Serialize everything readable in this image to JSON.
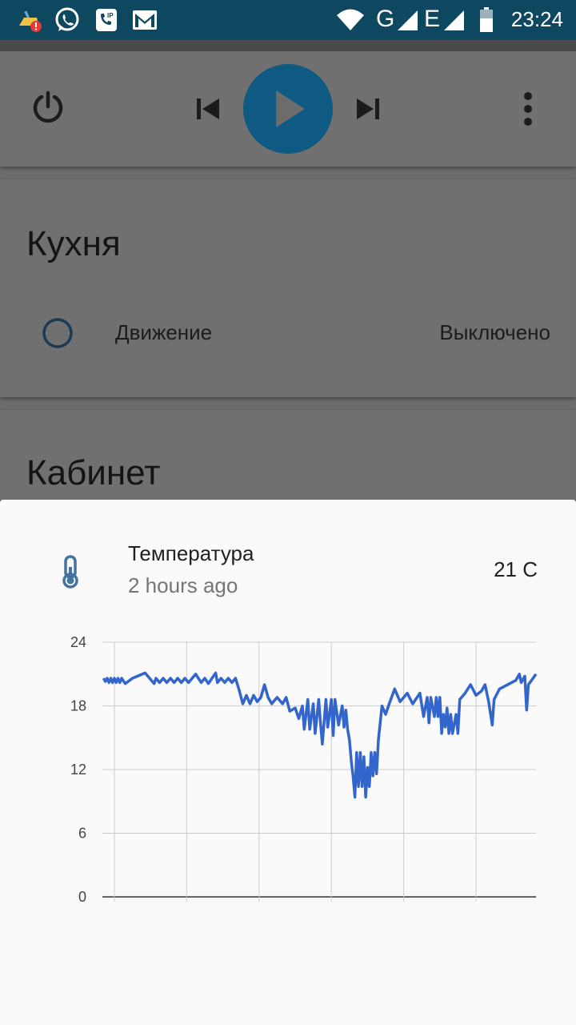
{
  "status_bar": {
    "time": "23:24",
    "network_g": "G",
    "network_e": "E",
    "icons": [
      "cleaner-alert-icon",
      "whatsapp-icon",
      "sip-phone-icon",
      "gmail-icon",
      "wifi-icon",
      "signal-icon",
      "battery-icon"
    ]
  },
  "media": {
    "icons": [
      "power-icon",
      "skip-previous-icon",
      "play-icon",
      "skip-next-icon",
      "more-vert-icon"
    ],
    "accent": "#0f5a82"
  },
  "kitchen": {
    "title": "Кухня",
    "sensor_label": "Движение",
    "sensor_state": "Выключено"
  },
  "office": {
    "title": "Кабинет"
  },
  "dialog": {
    "entity_name": "Температура",
    "last_changed": "2 hours ago",
    "state": "21 C",
    "icon": "thermometer-icon"
  },
  "chart_data": {
    "type": "line",
    "title": "",
    "xlabel": "",
    "ylabel": "",
    "ylim": [
      0,
      24
    ],
    "yticks": [
      "0",
      "6",
      "12",
      "18",
      "24"
    ],
    "xticks": [
      "0:00",
      "4:00",
      "8:00",
      "12:00",
      "16:00",
      "20:00"
    ],
    "xlim_hours": [
      -0.6,
      23.4
    ],
    "line_color": "#3366cc",
    "grid": true,
    "series": [
      {
        "name": "",
        "points": [
          [
            -0.6,
            20.6
          ],
          [
            -0.5,
            20.3
          ],
          [
            -0.4,
            20.6
          ],
          [
            -0.3,
            20.2
          ],
          [
            -0.2,
            20.6
          ],
          [
            -0.1,
            20.2
          ],
          [
            0.0,
            20.6
          ],
          [
            0.1,
            20.2
          ],
          [
            0.2,
            20.6
          ],
          [
            0.3,
            20.2
          ],
          [
            0.4,
            20.6
          ],
          [
            0.6,
            20.1
          ],
          [
            1.0,
            20.6
          ],
          [
            1.7,
            21.1
          ],
          [
            2.2,
            20.1
          ],
          [
            2.3,
            20.6
          ],
          [
            2.5,
            20.2
          ],
          [
            2.7,
            20.6
          ],
          [
            2.9,
            20.2
          ],
          [
            3.1,
            20.6
          ],
          [
            3.3,
            20.2
          ],
          [
            3.5,
            20.6
          ],
          [
            3.7,
            20.2
          ],
          [
            3.9,
            20.6
          ],
          [
            4.1,
            20.2
          ],
          [
            4.3,
            20.6
          ],
          [
            4.5,
            21.0
          ],
          [
            4.8,
            20.2
          ],
          [
            5.0,
            20.6
          ],
          [
            5.2,
            20.1
          ],
          [
            5.4,
            20.6
          ],
          [
            5.6,
            21.1
          ],
          [
            5.7,
            20.2
          ],
          [
            5.9,
            20.6
          ],
          [
            6.1,
            20.2
          ],
          [
            6.3,
            20.6
          ],
          [
            6.5,
            20.2
          ],
          [
            6.7,
            20.6
          ],
          [
            6.9,
            19.5
          ],
          [
            7.1,
            18.2
          ],
          [
            7.3,
            19.0
          ],
          [
            7.5,
            18.2
          ],
          [
            7.7,
            19.0
          ],
          [
            7.9,
            18.4
          ],
          [
            8.1,
            18.8
          ],
          [
            8.3,
            20.0
          ],
          [
            8.5,
            18.8
          ],
          [
            8.7,
            18.2
          ],
          [
            9.0,
            18.8
          ],
          [
            9.3,
            18.2
          ],
          [
            9.5,
            18.8
          ],
          [
            9.7,
            17.5
          ],
          [
            10.0,
            17.8
          ],
          [
            10.2,
            16.8
          ],
          [
            10.4,
            18.0
          ],
          [
            10.5,
            15.8
          ],
          [
            10.7,
            18.6
          ],
          [
            10.8,
            15.8
          ],
          [
            11.0,
            18.2
          ],
          [
            11.1,
            15.4
          ],
          [
            11.3,
            18.6
          ],
          [
            11.4,
            16.4
          ],
          [
            11.5,
            14.4
          ],
          [
            11.7,
            18.6
          ],
          [
            11.8,
            16.0
          ],
          [
            12.0,
            18.6
          ],
          [
            12.1,
            15.2
          ],
          [
            12.2,
            18.6
          ],
          [
            12.4,
            16.2
          ],
          [
            12.6,
            18.0
          ],
          [
            12.7,
            16.0
          ],
          [
            12.8,
            17.6
          ],
          [
            12.9,
            15.8
          ],
          [
            13.0,
            14.8
          ],
          [
            13.1,
            12.8
          ],
          [
            13.2,
            11.4
          ],
          [
            13.3,
            9.4
          ],
          [
            13.4,
            13.6
          ],
          [
            13.5,
            10.4
          ],
          [
            13.6,
            13.6
          ],
          [
            13.7,
            10.4
          ],
          [
            13.8,
            13.2
          ],
          [
            13.9,
            9.4
          ],
          [
            14.0,
            12.2
          ],
          [
            14.1,
            10.4
          ],
          [
            14.2,
            13.6
          ],
          [
            14.3,
            11.4
          ],
          [
            14.4,
            13.6
          ],
          [
            14.5,
            11.6
          ],
          [
            14.6,
            14.8
          ],
          [
            14.8,
            18.0
          ],
          [
            15.0,
            17.2
          ],
          [
            15.2,
            18.2
          ],
          [
            15.5,
            19.6
          ],
          [
            15.8,
            18.4
          ],
          [
            16.2,
            19.2
          ],
          [
            16.5,
            18.2
          ],
          [
            16.9,
            19.2
          ],
          [
            17.1,
            17.0
          ],
          [
            17.3,
            18.8
          ],
          [
            17.4,
            16.4
          ],
          [
            17.5,
            18.8
          ],
          [
            17.7,
            17.0
          ],
          [
            17.8,
            18.8
          ],
          [
            17.9,
            17.0
          ],
          [
            18.0,
            18.8
          ],
          [
            18.1,
            15.4
          ],
          [
            18.2,
            17.2
          ],
          [
            18.3,
            16.0
          ],
          [
            18.4,
            17.8
          ],
          [
            18.5,
            15.4
          ],
          [
            18.6,
            17.2
          ],
          [
            18.7,
            15.4
          ],
          [
            18.9,
            17.2
          ],
          [
            19.0,
            15.4
          ],
          [
            19.1,
            18.6
          ],
          [
            19.4,
            19.2
          ],
          [
            19.7,
            20.0
          ],
          [
            20.0,
            19.0
          ],
          [
            20.3,
            19.4
          ],
          [
            20.5,
            20.0
          ],
          [
            20.7,
            18.4
          ],
          [
            20.9,
            16.2
          ],
          [
            21.0,
            18.6
          ],
          [
            21.3,
            19.6
          ],
          [
            22.2,
            20.4
          ],
          [
            22.4,
            21.0
          ],
          [
            22.5,
            20.2
          ],
          [
            22.7,
            20.8
          ],
          [
            22.8,
            17.6
          ],
          [
            22.9,
            20.0
          ],
          [
            23.4,
            21.0
          ],
          [
            26.0,
            21.0
          ],
          [
            26.4,
            21.0
          ]
        ]
      }
    ]
  }
}
